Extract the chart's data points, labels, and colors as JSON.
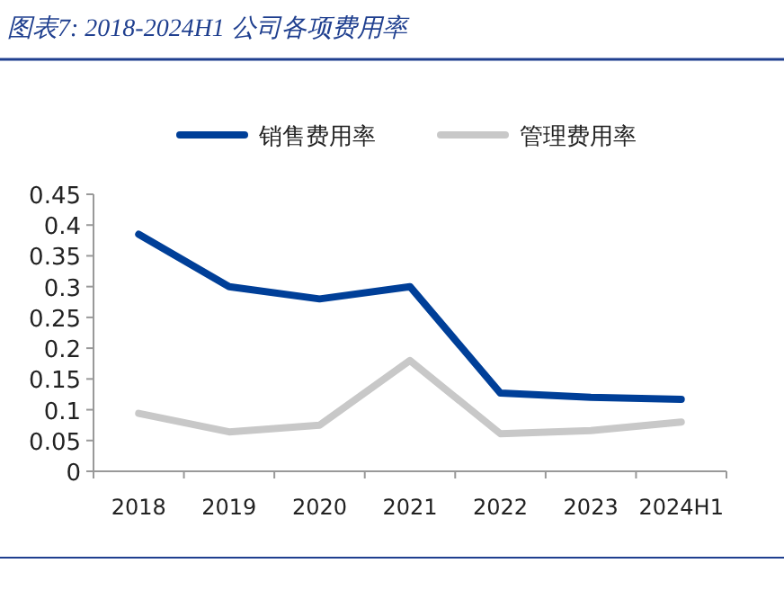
{
  "chart_data": {
    "type": "line",
    "title": "图表7:  2018-2024H1 公司各项费用率",
    "categories": [
      "2018",
      "2019",
      "2020",
      "2021",
      "2022",
      "2023",
      "2024H1"
    ],
    "series": [
      {
        "name": "销售费用率",
        "color": "#003f98",
        "values": [
          0.385,
          0.3,
          0.28,
          0.3,
          0.127,
          0.12,
          0.117
        ]
      },
      {
        "name": "管理费用率",
        "color": "#c8c8c8",
        "values": [
          0.094,
          0.064,
          0.075,
          0.18,
          0.061,
          0.066,
          0.08
        ]
      }
    ],
    "ylim": [
      0,
      0.45
    ],
    "yticks": [
      0,
      0.05,
      0.1,
      0.15,
      0.2,
      0.25,
      0.3,
      0.35,
      0.4,
      0.45
    ],
    "grid": false,
    "legend": "top",
    "marker": "none",
    "line_style": "solid"
  }
}
